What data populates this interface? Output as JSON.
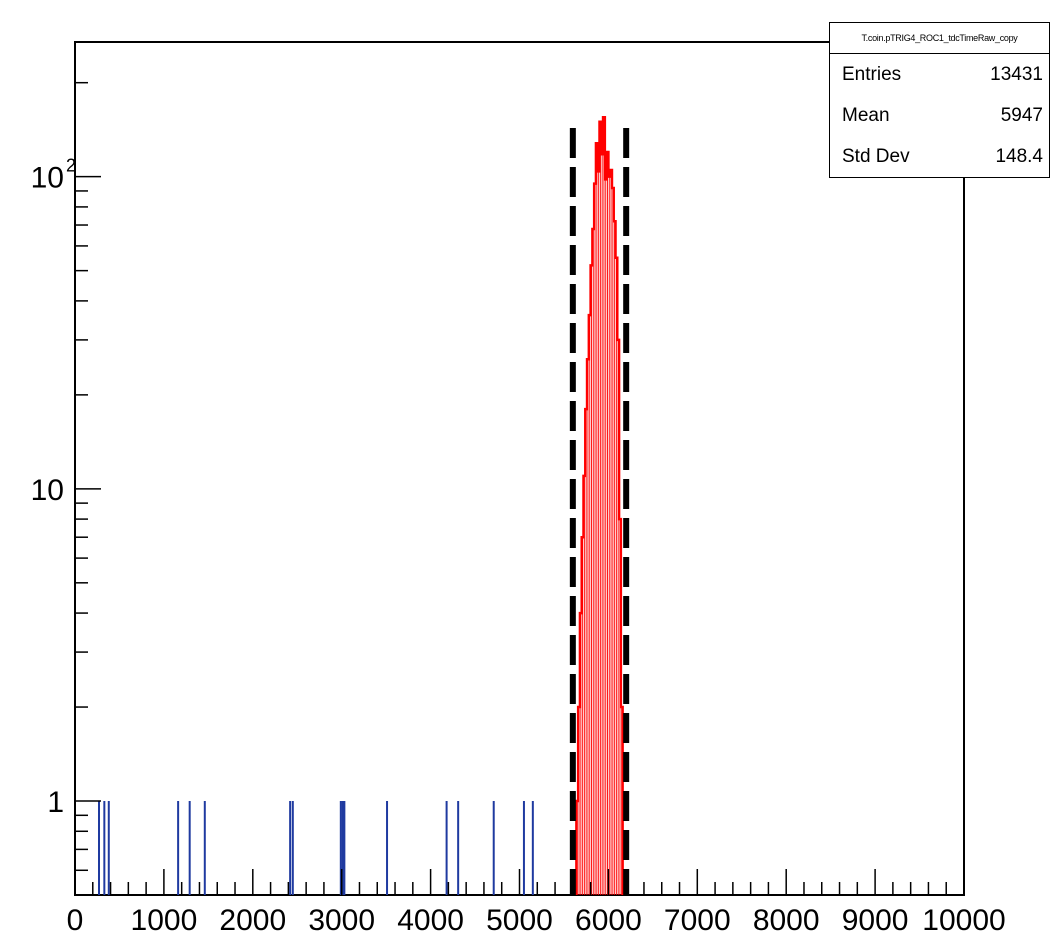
{
  "chart_data": {
    "type": "histogram",
    "title": "",
    "xlabel": "",
    "ylabel": "",
    "xlim": [
      0,
      10000
    ],
    "ylim": [
      0.5,
      270
    ],
    "y_scale": "log",
    "x_ticks": [
      "0",
      "1000",
      "2000",
      "3000",
      "4000",
      "5000",
      "6000",
      "7000",
      "8000",
      "9000",
      "10000"
    ],
    "y_tick_labels": [
      {
        "value": 1,
        "label": "1"
      },
      {
        "value": 10,
        "label": "10"
      },
      {
        "value": 100,
        "label": "10",
        "sup": "2"
      }
    ],
    "series": [
      {
        "kind": "blue_outside_window",
        "color": "#1f3aa0",
        "bins": [
          [
            270,
            1
          ],
          [
            330,
            1
          ],
          [
            380,
            1
          ],
          [
            1160,
            1
          ],
          [
            1290,
            1
          ],
          [
            1460,
            1
          ],
          [
            2420,
            1
          ],
          [
            2450,
            1
          ],
          [
            2990,
            1
          ],
          [
            3010,
            1
          ],
          [
            3030,
            1
          ],
          [
            3510,
            1
          ],
          [
            4180,
            1
          ],
          [
            4310,
            1
          ],
          [
            4710,
            1
          ],
          [
            5050,
            1
          ],
          [
            5150,
            1
          ]
        ]
      },
      {
        "kind": "red_inside_window",
        "color": "#ff0000",
        "bins": [
          [
            5650,
            1
          ],
          [
            5670,
            2
          ],
          [
            5690,
            4
          ],
          [
            5710,
            7
          ],
          [
            5730,
            11
          ],
          [
            5750,
            18
          ],
          [
            5770,
            26
          ],
          [
            5790,
            36
          ],
          [
            5810,
            52
          ],
          [
            5830,
            68
          ],
          [
            5850,
            95
          ],
          [
            5870,
            128
          ],
          [
            5890,
            104
          ],
          [
            5910,
            150
          ],
          [
            5930,
            118
          ],
          [
            5950,
            155
          ],
          [
            5970,
            98
          ],
          [
            5990,
            120
          ],
          [
            6010,
            100
          ],
          [
            6030,
            105
          ],
          [
            6050,
            92
          ],
          [
            6070,
            72
          ],
          [
            6090,
            55
          ],
          [
            6110,
            30
          ],
          [
            6130,
            8
          ],
          [
            6150,
            2
          ]
        ]
      }
    ],
    "cut_lines": {
      "color": "#000000",
      "style": "dashed",
      "x": [
        5600,
        6200
      ]
    },
    "legend": "top-right"
  },
  "stats": {
    "title": "T.coin.pTRIG4_ROC1_tdcTimeRaw_copy",
    "rows": [
      {
        "label": "Entries",
        "value": "13431"
      },
      {
        "label": "Mean",
        "value": "5947"
      },
      {
        "label": "Std Dev",
        "value": "148.4"
      }
    ]
  }
}
